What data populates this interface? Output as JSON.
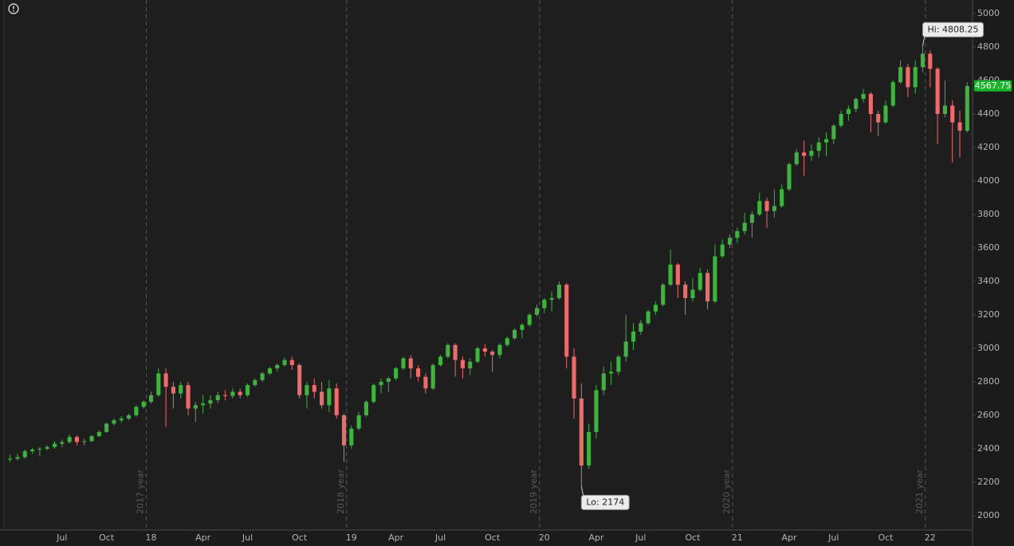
{
  "chart_data": {
    "type": "candlestick",
    "categories": [
      null,
      null,
      null,
      null,
      null,
      null,
      null,
      "Jul",
      null,
      null,
      null,
      null,
      null,
      "Oct",
      null,
      null,
      null,
      null,
      null,
      "18",
      null,
      null,
      null,
      null,
      null,
      null,
      "Apr",
      null,
      null,
      null,
      null,
      null,
      "Jul",
      null,
      null,
      null,
      null,
      null,
      null,
      "Oct",
      null,
      null,
      null,
      null,
      null,
      null,
      "19",
      null,
      null,
      null,
      null,
      null,
      "Apr",
      null,
      null,
      null,
      null,
      null,
      "Jul",
      null,
      null,
      null,
      null,
      null,
      null,
      "Oct",
      null,
      null,
      null,
      null,
      null,
      null,
      "20",
      null,
      null,
      null,
      null,
      null,
      null,
      "Apr",
      null,
      null,
      null,
      null,
      null,
      "Jul",
      null,
      null,
      null,
      null,
      null,
      null,
      "Oct",
      null,
      null,
      null,
      null,
      null,
      "21",
      null,
      null,
      null,
      null,
      null,
      null,
      "Apr",
      null,
      null,
      null,
      null,
      null,
      "Jul",
      null,
      null,
      null,
      null,
      null,
      null,
      "Oct",
      null,
      null,
      null,
      null,
      null,
      "22",
      null,
      null,
      null,
      null,
      null
    ],
    "open": [
      2335,
      2340,
      2350,
      2385,
      2395,
      2400,
      2410,
      2430,
      2440,
      2470,
      2440,
      2445,
      2475,
      2500,
      2550,
      2570,
      2580,
      2600,
      2650,
      2680,
      2720,
      2850,
      2770,
      2730,
      2780,
      2640,
      2660,
      2670,
      2690,
      2720,
      2715,
      2740,
      2720,
      2780,
      2810,
      2850,
      2880,
      2900,
      2930,
      2900,
      2720,
      2780,
      2740,
      2660,
      2760,
      2600,
      2420,
      2520,
      2600,
      2680,
      2780,
      2800,
      2820,
      2880,
      2940,
      2880,
      2830,
      2760,
      2900,
      2950,
      3020,
      2930,
      2880,
      2920,
      3000,
      2980,
      2960,
      3020,
      3060,
      3110,
      3140,
      3200,
      3240,
      3290,
      3300,
      3380,
      2950,
      2700,
      2300,
      2500,
      2750,
      2850,
      2860,
      2950,
      3040,
      3100,
      3150,
      3220,
      3260,
      3380,
      3500,
      3380,
      3300,
      3350,
      3450,
      3280,
      3550,
      3620,
      3660,
      3700,
      3750,
      3800,
      3880,
      3820,
      3850,
      3950,
      4100,
      4170,
      4150,
      4180,
      4230,
      4250,
      4330,
      4400,
      4430,
      4490,
      4520,
      4400,
      4350,
      4450,
      4590,
      4680,
      4560,
      4680,
      4760,
      4670,
      4400,
      4450,
      4350,
      4300
    ],
    "high": [
      2365,
      2370,
      2395,
      2405,
      2410,
      2420,
      2445,
      2455,
      2485,
      2480,
      2460,
      2480,
      2510,
      2555,
      2580,
      2595,
      2610,
      2660,
      2690,
      2740,
      2880,
      2880,
      2800,
      2800,
      2800,
      2680,
      2720,
      2720,
      2740,
      2750,
      2760,
      2760,
      2790,
      2820,
      2860,
      2890,
      2910,
      2945,
      2950,
      2910,
      2800,
      2820,
      2800,
      2810,
      2790,
      2610,
      2540,
      2620,
      2690,
      2790,
      2820,
      2830,
      2890,
      2950,
      2960,
      2900,
      2850,
      2910,
      2960,
      3030,
      3030,
      2950,
      2940,
      3010,
      3025,
      2990,
      3030,
      3070,
      3120,
      3150,
      3210,
      3260,
      3300,
      3340,
      3400,
      3390,
      3000,
      2790,
      2550,
      2780,
      2890,
      2920,
      2960,
      3200,
      3150,
      3170,
      3230,
      3280,
      3390,
      3590,
      3510,
      3400,
      3420,
      3480,
      3470,
      3620,
      3650,
      3680,
      3720,
      3810,
      3820,
      3930,
      3900,
      3950,
      3980,
      4110,
      4190,
      4240,
      4220,
      4260,
      4290,
      4340,
      4420,
      4450,
      4500,
      4550,
      4530,
      4420,
      4480,
      4600,
      4720,
      4700,
      4720,
      4808.25,
      4780,
      4680,
      4600,
      4480,
      4420,
      4590
    ],
    "low": [
      2320,
      2330,
      2340,
      2370,
      2355,
      2390,
      2400,
      2410,
      2430,
      2420,
      2420,
      2440,
      2470,
      2495,
      2540,
      2555,
      2570,
      2590,
      2640,
      2670,
      2710,
      2530,
      2640,
      2700,
      2600,
      2560,
      2610,
      2640,
      2670,
      2690,
      2700,
      2700,
      2710,
      2770,
      2800,
      2840,
      2860,
      2890,
      2870,
      2700,
      2640,
      2700,
      2640,
      2620,
      2580,
      2320,
      2400,
      2510,
      2590,
      2670,
      2730,
      2740,
      2810,
      2870,
      2820,
      2800,
      2730,
      2750,
      2890,
      2940,
      2830,
      2820,
      2840,
      2910,
      2950,
      2860,
      2940,
      3010,
      3050,
      3060,
      3130,
      3190,
      3210,
      3220,
      3290,
      2880,
      2580,
      2174,
      2280,
      2460,
      2720,
      2780,
      2840,
      2920,
      2990,
      3080,
      3140,
      3200,
      3250,
      3370,
      3300,
      3200,
      3280,
      3340,
      3230,
      3270,
      3540,
      3600,
      3630,
      3680,
      3660,
      3790,
      3720,
      3780,
      3840,
      3940,
      4090,
      4030,
      4120,
      4140,
      4150,
      4220,
      4320,
      4360,
      4410,
      4470,
      4290,
      4270,
      4340,
      4440,
      4580,
      4500,
      4520,
      4650,
      4560,
      4220,
      4380,
      4110,
      4140,
      4290
    ],
    "close": [
      2340,
      2350,
      2385,
      2395,
      2400,
      2410,
      2430,
      2440,
      2470,
      2440,
      2445,
      2475,
      2500,
      2550,
      2570,
      2580,
      2600,
      2650,
      2680,
      2720,
      2850,
      2770,
      2730,
      2780,
      2640,
      2660,
      2670,
      2690,
      2720,
      2715,
      2740,
      2720,
      2780,
      2810,
      2850,
      2880,
      2900,
      2930,
      2900,
      2720,
      2780,
      2740,
      2660,
      2760,
      2600,
      2420,
      2520,
      2600,
      2680,
      2780,
      2800,
      2820,
      2880,
      2940,
      2880,
      2830,
      2760,
      2900,
      2950,
      3020,
      2930,
      2880,
      2920,
      3000,
      2980,
      2960,
      3020,
      3060,
      3110,
      3140,
      3200,
      3240,
      3290,
      3300,
      3380,
      2950,
      2700,
      2300,
      2500,
      2750,
      2850,
      2860,
      2950,
      3040,
      3100,
      3150,
      3220,
      3260,
      3380,
      3500,
      3380,
      3300,
      3350,
      3450,
      3280,
      3550,
      3620,
      3660,
      3700,
      3750,
      3800,
      3880,
      3820,
      3850,
      3950,
      4100,
      4170,
      4150,
      4180,
      4230,
      4250,
      4330,
      4400,
      4430,
      4490,
      4520,
      4400,
      4350,
      4450,
      4590,
      4680,
      4560,
      4680,
      4760,
      4670,
      4400,
      4450,
      4350,
      4300,
      4567.75
    ],
    "up_color": "#3db53d",
    "down_color": "#f06a6a",
    "ylim": [
      1914,
      5081
    ],
    "yticks": [
      2000,
      2200,
      2400,
      2600,
      2800,
      3000,
      3200,
      3400,
      3600,
      3800,
      4000,
      4200,
      4400,
      4600,
      4800,
      5000
    ],
    "year_labels": [
      "2017 year",
      "2018 year",
      "2019 year",
      "2020 year",
      "2021 year"
    ],
    "hi_label": "Hi: 4808.25",
    "lo_label": "Lo: 2174",
    "last_label": "4567.75",
    "last_color": "#19b52a"
  }
}
